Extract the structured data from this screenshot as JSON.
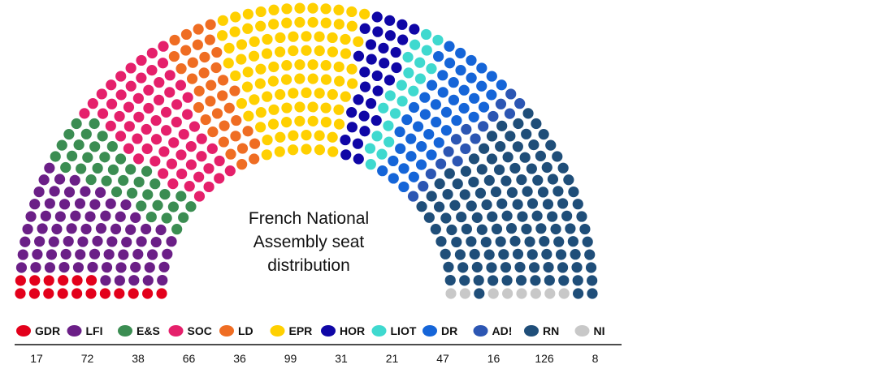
{
  "chart_data": {
    "type": "parliament",
    "title_lines": [
      "French National",
      "Assembly seat",
      "distribution"
    ],
    "parties": [
      {
        "name": "GDR",
        "seats": 17,
        "color": "#e3001b"
      },
      {
        "name": "LFI",
        "seats": 72,
        "color": "#6b1f87"
      },
      {
        "name": "E&S",
        "seats": 38,
        "color": "#3b8d52"
      },
      {
        "name": "SOC",
        "seats": 66,
        "color": "#e5206b"
      },
      {
        "name": "LD",
        "seats": 36,
        "color": "#ef6d23"
      },
      {
        "name": "EPR",
        "seats": 99,
        "color": "#ffd000"
      },
      {
        "name": "HOR",
        "seats": 31,
        "color": "#0f06a6"
      },
      {
        "name": "LIOT",
        "seats": 21,
        "color": "#3fd9cf"
      },
      {
        "name": "DR",
        "seats": 47,
        "color": "#1565d8"
      },
      {
        "name": "AD!",
        "seats": 16,
        "color": "#2c56b3"
      },
      {
        "name": "RN",
        "seats": 126,
        "color": "#1f4e79"
      },
      {
        "name": "NI",
        "seats": 8,
        "color": "#c8c8c8"
      }
    ]
  }
}
